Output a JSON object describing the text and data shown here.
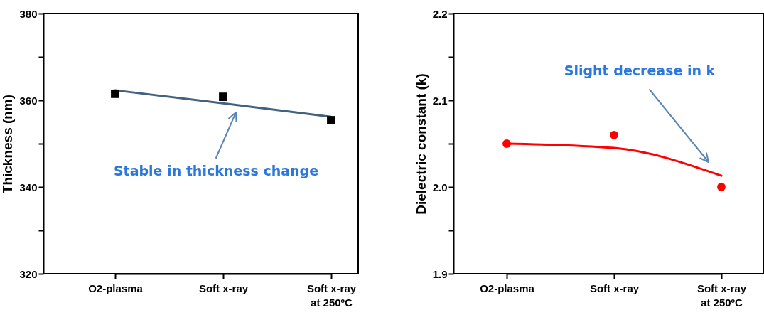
{
  "chart_data": [
    {
      "type": "scatter",
      "ylabel": "Thickness (nm)",
      "categories": [
        "O2-plasma",
        "Soft x-ray",
        "Soft x-ray\nat 250ºC"
      ],
      "ylim": [
        320,
        380
      ],
      "yticks": [
        320,
        {
          "value": 330,
          "label": null
        },
        340,
        {
          "value": 350,
          "label": null
        },
        360,
        {
          "value": 370,
          "label": null
        },
        380
      ],
      "series": [
        {
          "type": "line",
          "color": "#44617f",
          "values": [
            362.3,
            359.3,
            356.2
          ]
        },
        {
          "color": "#000000",
          "marker": "square",
          "values": [
            361.5,
            360.8,
            355.4
          ]
        }
      ],
      "annotations": [
        "Stable in thickness change"
      ]
    },
    {
      "type": "scatter",
      "ylabel": "Dielectric constant (k)",
      "categories": [
        "O2-plasma",
        "Soft x-ray",
        "Soft x-ray\nat 250ºC"
      ],
      "ylim": [
        1.9,
        2.2
      ],
      "yticks": [
        {
          "value": 1.9,
          "label": "1.9"
        },
        {
          "value": 1.95,
          "label": null
        },
        {
          "value": 2,
          "label": "2.0"
        },
        {
          "value": 2.05,
          "label": null
        },
        {
          "value": 2.1,
          "label": "2.1"
        },
        {
          "value": 2.15,
          "label": null
        },
        {
          "value": 2.2,
          "label": "2.2"
        }
      ],
      "series": [
        {
          "type": "line",
          "color": "#ff0000",
          "values": [
            2.05,
            2.045,
            2.013
          ]
        },
        {
          "color": "#ff0000",
          "marker": "circle",
          "values": [
            2.05,
            2.06,
            2.0
          ]
        }
      ],
      "annotations": [
        "Slight decrease in k"
      ]
    }
  ]
}
